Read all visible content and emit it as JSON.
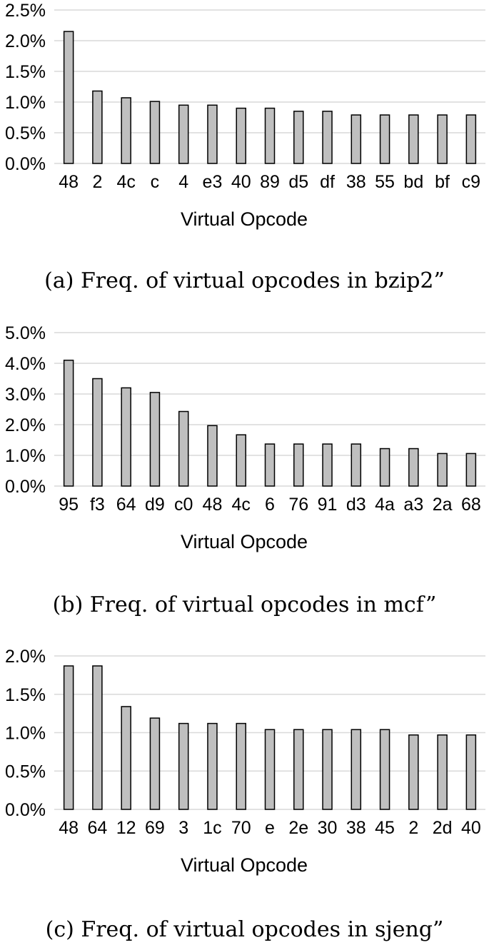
{
  "figures": [
    {
      "caption": "(a) Freq. of virtual opcodes in bzip2”"
    },
    {
      "caption": "(b) Freq. of virtual opcodes in mcf”"
    },
    {
      "caption": "(c) Freq. of virtual opcodes in sjeng”"
    }
  ],
  "chart_data": [
    {
      "type": "bar",
      "categories": [
        "48",
        "2",
        "4c",
        "c",
        "4",
        "e3",
        "40",
        "89",
        "d5",
        "df",
        "38",
        "55",
        "bd",
        "bf",
        "c9"
      ],
      "values": [
        2.15,
        1.18,
        1.07,
        1.01,
        0.95,
        0.95,
        0.9,
        0.9,
        0.85,
        0.85,
        0.79,
        0.79,
        0.79,
        0.79,
        0.79
      ],
      "xlabel": "Virtual Opcode",
      "ylabel": "",
      "ylim": [
        0,
        2.5
      ],
      "yticks": [
        0,
        0.5,
        1.0,
        1.5,
        2.0,
        2.5
      ],
      "ytick_labels": [
        "0.0%",
        "0.5%",
        "1.0%",
        "1.5%",
        "2.0%",
        "2.5%"
      ],
      "grid": true,
      "bar_color": "#bfbfbf"
    },
    {
      "type": "bar",
      "categories": [
        "95",
        "f3",
        "64",
        "d9",
        "c0",
        "48",
        "4c",
        "6",
        "76",
        "91",
        "d3",
        "4a",
        "a3",
        "2a",
        "68"
      ],
      "values": [
        4.1,
        3.5,
        3.2,
        3.05,
        2.43,
        1.97,
        1.67,
        1.37,
        1.37,
        1.37,
        1.37,
        1.22,
        1.22,
        1.06,
        1.06
      ],
      "xlabel": "Virtual Opcode",
      "ylabel": "",
      "ylim": [
        0,
        5.0
      ],
      "yticks": [
        0,
        1.0,
        2.0,
        3.0,
        4.0,
        5.0
      ],
      "ytick_labels": [
        "0.0%",
        "1.0%",
        "2.0%",
        "3.0%",
        "4.0%",
        "5.0%"
      ],
      "grid": true,
      "bar_color": "#bfbfbf"
    },
    {
      "type": "bar",
      "categories": [
        "48",
        "64",
        "12",
        "69",
        "3",
        "1c",
        "70",
        "e",
        "2e",
        "30",
        "38",
        "45",
        "2",
        "2d",
        "40"
      ],
      "values": [
        1.87,
        1.87,
        1.34,
        1.19,
        1.12,
        1.12,
        1.12,
        1.04,
        1.04,
        1.04,
        1.04,
        1.04,
        0.97,
        0.97,
        0.97
      ],
      "xlabel": "Virtual Opcode",
      "ylabel": "",
      "ylim": [
        0,
        2.0
      ],
      "yticks": [
        0,
        0.5,
        1.0,
        1.5,
        2.0
      ],
      "ytick_labels": [
        "0.0%",
        "0.5%",
        "1.0%",
        "1.5%",
        "2.0%"
      ],
      "grid": true,
      "bar_color": "#bfbfbf"
    }
  ]
}
